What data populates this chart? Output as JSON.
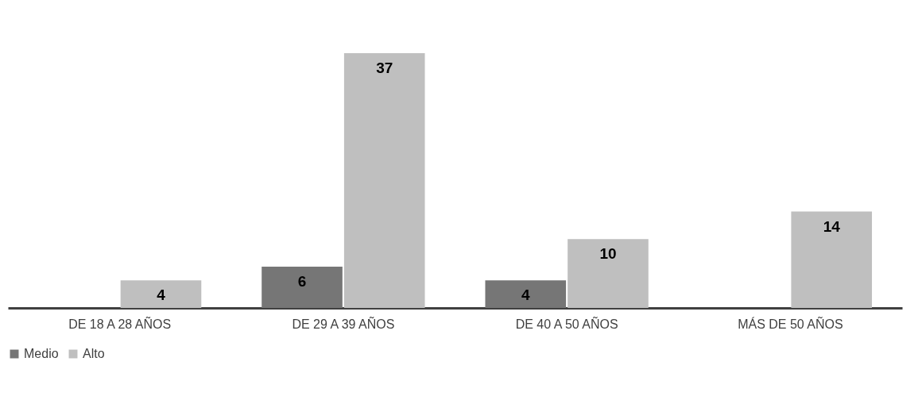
{
  "chart_data": {
    "type": "bar",
    "categories": [
      "DE 18 A 28 AÑOS",
      "DE 29 A 39 AÑOS",
      "DE 40 A 50 AÑOS",
      "MÁS DE 50 AÑOS"
    ],
    "series": [
      {
        "name": "Medio",
        "color": "#767676",
        "values": [
          null,
          6,
          4,
          null
        ]
      },
      {
        "name": "Alto",
        "color": "#bfbfbf",
        "values": [
          4,
          37,
          10,
          14
        ]
      }
    ],
    "data_labels": true,
    "legend": "bottom",
    "grid": false
  }
}
